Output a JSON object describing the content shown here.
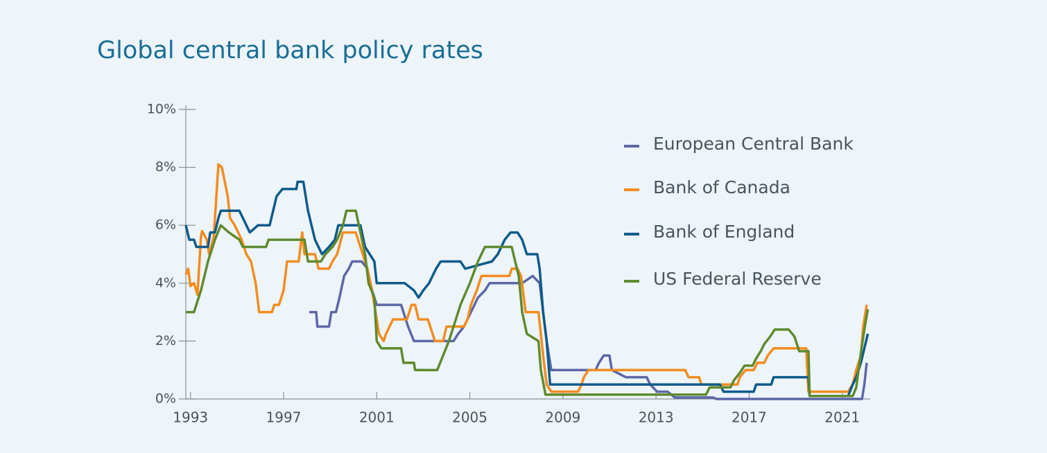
{
  "chart_data": {
    "type": "line",
    "title": "Global central bank policy rates",
    "xlim": [
      1992.8,
      2022.2
    ],
    "xticks": [
      1993,
      1997,
      2001,
      2005,
      2009,
      2013,
      2017,
      2021
    ],
    "ylim": [
      0,
      10
    ],
    "yticks": [
      {
        "value": 0,
        "label": "0%"
      },
      {
        "value": 2,
        "label": "2%"
      },
      {
        "value": 4,
        "label": "4%"
      },
      {
        "value": 6,
        "label": "6%"
      },
      {
        "value": 8,
        "label": "8%"
      },
      {
        "value": 10,
        "label": "10%"
      }
    ],
    "grid": false,
    "legend": "right",
    "series": [
      {
        "name": "European Central Bank",
        "color": "#5b67a6",
        "x": [
          1998.1,
          1998.4,
          1998.45,
          1998.95,
          1999.05,
          1999.25,
          1999.4,
          1999.6,
          1999.8,
          1999.95,
          2000.35,
          2000.6,
          2000.8,
          2001.0,
          2002.05,
          2002.35,
          2002.6,
          2004.3,
          2004.5,
          2004.75,
          2005.05,
          2005.35,
          2005.65,
          2005.85,
          2007.25,
          2007.7,
          2008.0,
          2008.15,
          2008.3,
          2008.5,
          2010.4,
          2010.55,
          2010.75,
          2011.0,
          2011.1,
          2011.7,
          2012.6,
          2012.75,
          2013.05,
          2013.5,
          2013.8,
          2015.45,
          2015.6,
          2021.85,
          2021.95,
          2022.05
        ],
        "values": [
          3.0,
          3.0,
          2.5,
          2.5,
          3.0,
          3.0,
          3.5,
          4.25,
          4.5,
          4.75,
          4.75,
          4.5,
          3.75,
          3.25,
          3.25,
          2.5,
          2.0,
          2.0,
          2.25,
          2.5,
          3.0,
          3.5,
          3.75,
          4.0,
          4.0,
          4.25,
          4.0,
          3.0,
          2.0,
          1.0,
          1.0,
          1.25,
          1.5,
          1.5,
          1.0,
          0.75,
          0.75,
          0.5,
          0.25,
          0.25,
          0.05,
          0.05,
          0.0,
          0.0,
          0.5,
          1.25
        ]
      },
      {
        "name": "Bank of Canada",
        "color": "#f28c1e",
        "x": [
          1992.8,
          1992.9,
          1993.0,
          1993.15,
          1993.3,
          1993.45,
          1993.5,
          1993.7,
          1993.8,
          1994.0,
          1994.2,
          1994.35,
          1994.6,
          1994.7,
          1994.9,
          1995.2,
          1995.4,
          1995.6,
          1995.8,
          1995.95,
          1996.5,
          1996.6,
          1996.8,
          1997.0,
          1997.15,
          1997.65,
          1997.8,
          1997.9,
          1998.35,
          1998.5,
          1998.95,
          1999.1,
          1999.3,
          1999.55,
          2000.1,
          2000.3,
          2000.6,
          2000.8,
          2001.0,
          2001.1,
          2001.3,
          2001.4,
          2001.55,
          2001.7,
          2002.3,
          2002.5,
          2002.65,
          2002.8,
          2003.2,
          2003.4,
          2003.5,
          2003.85,
          2004.0,
          2004.75,
          2004.9,
          2005.05,
          2005.3,
          2005.5,
          2006.7,
          2006.8,
          2007.05,
          2007.2,
          2007.4,
          2007.95,
          2008.05,
          2008.15,
          2008.3,
          2008.5,
          2009.65,
          2009.8,
          2009.9,
          2010.1,
          2014.25,
          2014.4,
          2014.85,
          2014.95,
          2016.5,
          2016.6,
          2016.85,
          2017.2,
          2017.35,
          2017.65,
          2017.8,
          2018.05,
          2019.45,
          2019.55,
          2021.25,
          2021.45,
          2021.6,
          2021.8,
          2021.9,
          2022.05
        ],
        "values": [
          4.3,
          4.5,
          3.9,
          4.0,
          3.6,
          5.6,
          5.8,
          5.5,
          5.0,
          5.6,
          8.1,
          8.0,
          7.0,
          6.25,
          6.0,
          5.5,
          5.0,
          4.75,
          4.0,
          3.0,
          3.0,
          3.25,
          3.25,
          3.75,
          4.75,
          4.75,
          5.75,
          5.0,
          5.0,
          4.5,
          4.5,
          4.75,
          5.0,
          5.75,
          5.75,
          5.25,
          4.5,
          3.75,
          2.75,
          2.25,
          2.0,
          2.25,
          2.5,
          2.75,
          2.75,
          3.25,
          3.25,
          2.75,
          2.75,
          2.25,
          2.0,
          2.0,
          2.5,
          2.5,
          2.75,
          3.25,
          3.75,
          4.25,
          4.25,
          4.5,
          4.5,
          4.25,
          3.0,
          3.0,
          2.25,
          1.5,
          0.5,
          0.25,
          0.25,
          0.5,
          0.75,
          1.0,
          1.0,
          0.75,
          0.75,
          0.5,
          0.5,
          0.75,
          1.0,
          1.0,
          1.25,
          1.25,
          1.5,
          1.75,
          1.75,
          0.25,
          0.25,
          0.5,
          1.0,
          1.5,
          2.5,
          3.25
        ]
      },
      {
        "name": "Bank of England",
        "color": "#0f5a8a",
        "x": [
          1992.8,
          1992.95,
          1993.15,
          1993.25,
          1993.75,
          1993.85,
          1994.05,
          1994.2,
          1994.3,
          1995.1,
          1995.25,
          1995.55,
          1995.9,
          1996.4,
          1996.55,
          1996.7,
          1996.95,
          1997.55,
          1997.6,
          1997.85,
          1998.05,
          1998.35,
          1998.65,
          1998.95,
          1999.2,
          1999.35,
          2000.3,
          2000.5,
          2000.9,
          2001.0,
          2002.2,
          2002.6,
          2002.8,
          2003.0,
          2003.25,
          2003.55,
          2003.75,
          2004.6,
          2004.8,
          2005.95,
          2006.2,
          2006.5,
          2006.75,
          2007.05,
          2007.25,
          2007.45,
          2007.9,
          2008.0,
          2008.15,
          2008.3,
          2008.45,
          2015.75,
          2015.9,
          2017.2,
          2017.3,
          2017.95,
          2018.05,
          2019.55,
          2019.6,
          2021.25,
          2021.45,
          2021.6,
          2021.8,
          2022.1
        ],
        "values": [
          6.0,
          5.5,
          5.5,
          5.25,
          5.25,
          5.75,
          5.75,
          6.25,
          6.5,
          6.5,
          6.25,
          5.75,
          6.0,
          6.0,
          6.5,
          7.0,
          7.25,
          7.25,
          7.5,
          7.5,
          6.5,
          5.5,
          5.0,
          5.25,
          5.5,
          6.0,
          6.0,
          5.25,
          4.75,
          4.0,
          4.0,
          3.75,
          3.5,
          3.75,
          4.0,
          4.5,
          4.75,
          4.75,
          4.5,
          4.75,
          5.0,
          5.5,
          5.75,
          5.75,
          5.5,
          5.0,
          5.0,
          4.5,
          3.0,
          2.0,
          0.5,
          0.5,
          0.25,
          0.25,
          0.5,
          0.5,
          0.75,
          0.75,
          0.1,
          0.1,
          0.5,
          0.75,
          1.25,
          2.25
        ]
      },
      {
        "name": "US Federal Reserve",
        "color": "#5f8a2e",
        "x": [
          1992.8,
          1993.15,
          1993.45,
          1993.6,
          1993.75,
          1994.05,
          1994.3,
          1994.65,
          1995.1,
          1995.25,
          1996.25,
          1996.35,
          1997.9,
          1998.05,
          1998.6,
          1998.8,
          1999.1,
          1999.3,
          1999.55,
          1999.7,
          2000.1,
          2000.3,
          2000.5,
          2000.65,
          2000.9,
          2001.0,
          2001.2,
          2002.05,
          2002.15,
          2002.6,
          2002.65,
          2003.6,
          2003.85,
          2004.1,
          2004.3,
          2004.6,
          2005.0,
          2005.35,
          2005.65,
          2006.8,
          2006.95,
          2007.1,
          2007.25,
          2007.45,
          2007.95,
          2008.05,
          2008.25,
          2015.15,
          2015.3,
          2016.2,
          2016.35,
          2016.6,
          2016.8,
          2017.15,
          2017.3,
          2017.5,
          2017.65,
          2017.9,
          2018.1,
          2018.7,
          2018.95,
          2019.15,
          2019.55,
          2019.6,
          2021.45,
          2021.6,
          2021.8,
          2021.95,
          2022.1
        ],
        "values": [
          3.0,
          3.0,
          3.75,
          4.25,
          4.75,
          5.5,
          6.0,
          5.75,
          5.5,
          5.25,
          5.25,
          5.5,
          5.5,
          4.75,
          4.75,
          5.0,
          5.25,
          5.5,
          6.0,
          6.5,
          6.5,
          5.75,
          5.0,
          4.0,
          3.5,
          2.0,
          1.75,
          1.75,
          1.25,
          1.25,
          1.0,
          1.0,
          1.5,
          2.0,
          2.5,
          3.25,
          4.0,
          4.75,
          5.25,
          5.25,
          4.75,
          4.25,
          3.0,
          2.25,
          2.0,
          1.0,
          0.15,
          0.15,
          0.4,
          0.4,
          0.65,
          0.9,
          1.15,
          1.15,
          1.4,
          1.65,
          1.9,
          2.15,
          2.4,
          2.4,
          2.15,
          1.65,
          1.65,
          0.1,
          0.1,
          0.4,
          1.6,
          2.4,
          3.1
        ]
      }
    ]
  }
}
